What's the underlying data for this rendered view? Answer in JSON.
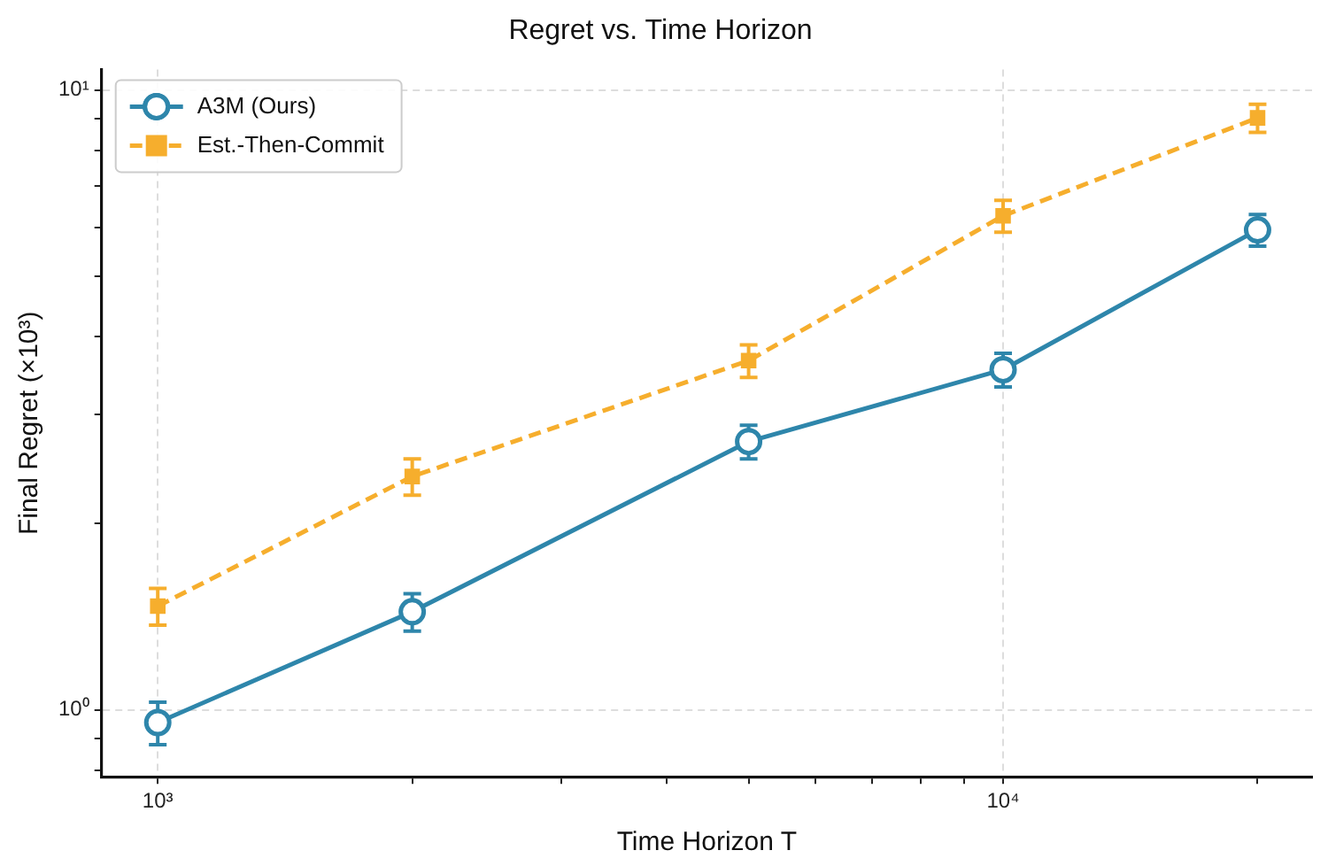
{
  "chart_data": {
    "type": "line",
    "title": "Regret vs. Time Horizon",
    "xlabel": "Time Horizon T",
    "ylabel": "Final Regret (×10³)",
    "x": [
      1000,
      2000,
      5000,
      10000,
      20000
    ],
    "series": [
      {
        "name": "A3M (Ours)",
        "color": "#2e86ab",
        "marker": "circle",
        "line_style": "solid",
        "values": [
          0.954,
          1.44,
          2.71,
          3.54,
          5.95
        ],
        "errors": [
          0.075,
          0.1,
          0.17,
          0.22,
          0.35
        ]
      },
      {
        "name": "Est.-Then-Commit",
        "color": "#f6ae2d",
        "marker": "square",
        "line_style": "dashed",
        "values": [
          1.47,
          2.38,
          3.66,
          6.27,
          9.02
        ],
        "errors": [
          0.1,
          0.16,
          0.22,
          0.37,
          0.47
        ]
      }
    ],
    "log": "xy",
    "xlim": [
      858,
      23200
    ],
    "ylim": [
      0.78,
      10.8
    ],
    "xticks": [
      {
        "value": 1000,
        "label": "10³"
      },
      {
        "value": 2000,
        "label": null
      },
      {
        "value": 3000,
        "label": null
      },
      {
        "value": 4000,
        "label": null
      },
      {
        "value": 5000,
        "label": null
      },
      {
        "value": 6000,
        "label": null
      },
      {
        "value": 7000,
        "label": null
      },
      {
        "value": 8000,
        "label": null
      },
      {
        "value": 9000,
        "label": null
      },
      {
        "value": 10000,
        "label": "10⁴"
      },
      {
        "value": 20000,
        "label": null
      }
    ],
    "yticks": [
      {
        "value": 0.8,
        "label": null
      },
      {
        "value": 0.9,
        "label": null
      },
      {
        "value": 1,
        "label": "10⁰"
      },
      {
        "value": 2,
        "label": null
      },
      {
        "value": 3,
        "label": null
      },
      {
        "value": 4,
        "label": null
      },
      {
        "value": 5,
        "label": null
      },
      {
        "value": 6,
        "label": null
      },
      {
        "value": 7,
        "label": null
      },
      {
        "value": 8,
        "label": null
      },
      {
        "value": 9,
        "label": null
      },
      {
        "value": 10,
        "label": "10¹"
      }
    ],
    "grid": true,
    "legend": "top left"
  }
}
